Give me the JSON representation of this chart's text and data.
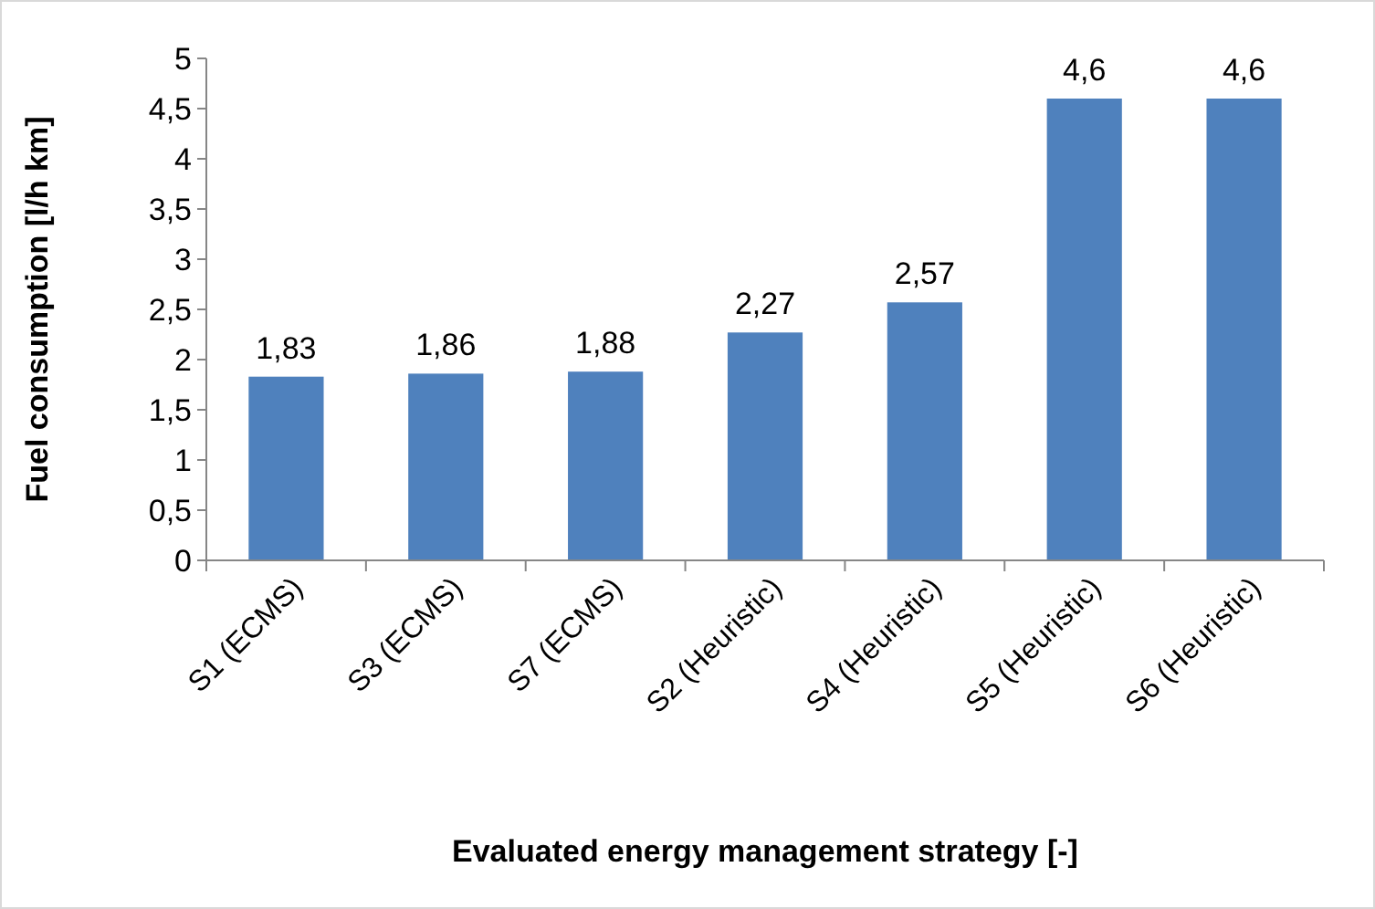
{
  "chart_data": {
    "type": "bar",
    "xlabel": "Evaluated energy management strategy [-]",
    "ylabel": "Fuel consumption [l/h km]",
    "categories": [
      "S1 (ECMS)",
      "S3 (ECMS)",
      "S7 (ECMS)",
      "S2 (Heuristic)",
      "S4 (Heuristic)",
      "S5 (Heuristic)",
      "S6 (Heuristic)"
    ],
    "values": [
      1.83,
      1.86,
      1.88,
      2.27,
      2.57,
      4.6,
      4.6
    ],
    "value_labels": [
      "1,83",
      "1,86",
      "1,88",
      "2,27",
      "2,57",
      "4,6",
      "4,6"
    ],
    "color": "#4f81bd",
    "ylim": [
      0,
      5
    ],
    "yticks": [
      0,
      {
        "value": 0.5,
        "label": "0,5"
      },
      1,
      {
        "value": 1.5,
        "label": "1,5"
      },
      2,
      {
        "value": 2.5,
        "label": "2,5"
      },
      3,
      {
        "value": 3.5,
        "label": "3,5"
      },
      4,
      {
        "value": 4.5,
        "label": "4,5"
      },
      5
    ],
    "grid": false
  }
}
